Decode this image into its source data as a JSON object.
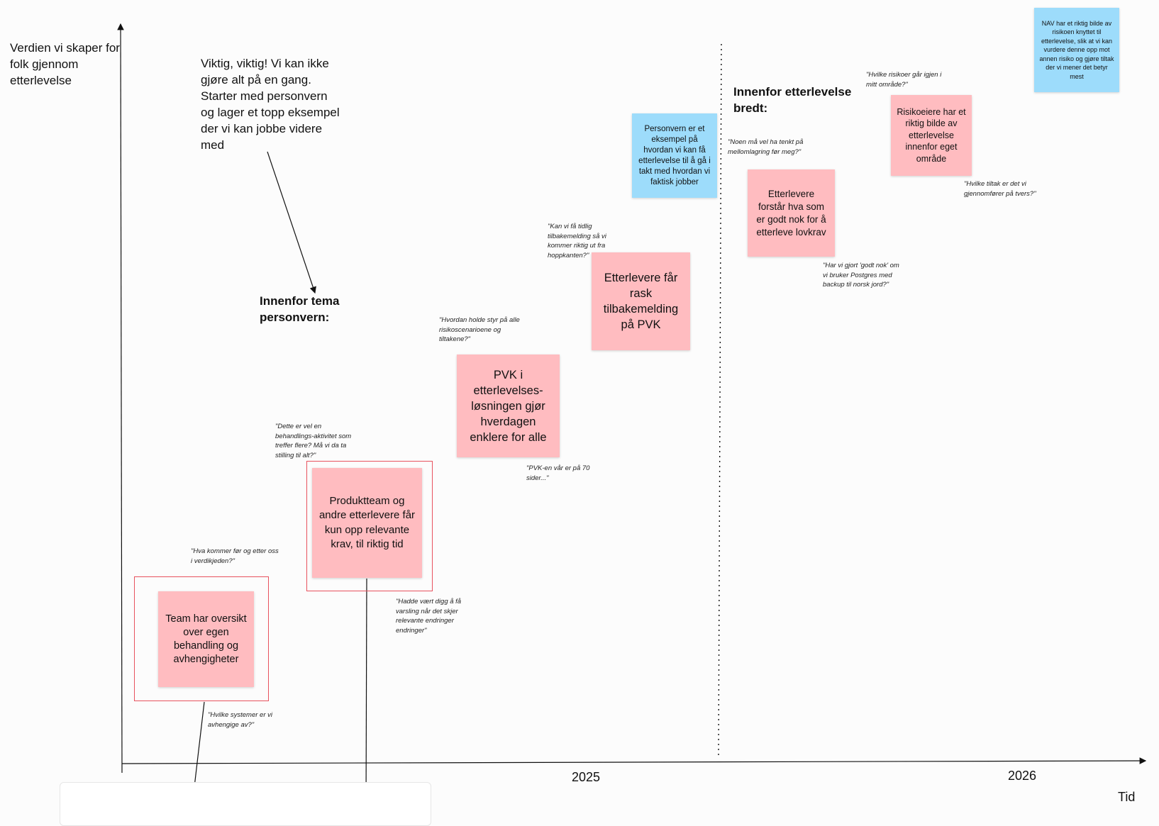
{
  "y_axis_label": "Verdien vi skaper for folk gjennom etterlevelse",
  "x_axis_label": "Tid",
  "years": [
    "2025",
    "2026"
  ],
  "intro_note": "Viktig, viktig! Vi kan ikke gjøre alt på en gang. Starter med personvern og lager et topp eksempel der vi kan jobbe videre med",
  "heading_personvern": "Innenfor tema personvern:",
  "heading_bredt": "Innenfor etterlevelse bredt:",
  "stickies": {
    "team": "Team har oversikt over egen behandling og avhengigheter",
    "produktteam": "Produktteam og andre etterlevere får kun opp relevante krav, til riktig tid",
    "pvk": "PVK i etterlevelses-løsningen gjør hverdagen enklere for alle",
    "tilbakemelding": "Etterlevere får rask tilbakemelding på PVK",
    "personvern_eksempel": "Personvern er et eksempel på hvordan vi kan få etterlevelse til å gå i takt med hvordan vi faktisk jobber",
    "lovkrav": "Etterlevere forstår hva som er godt nok for å etterleve lovkrav",
    "risikoeiere": "Risikoeiere har et riktig bilde av etterlevelse innenfor eget område",
    "nav_risiko": "NAV har et riktig bilde av risikoen knyttet til etterlevelse, slik at vi kan vurdere denne opp mot annen risiko og gjøre tiltak der vi mener det betyr mest"
  },
  "quotes": {
    "verdikjeden": "\"Hva kommer før og etter oss i verdikjeden?\"",
    "systemer": "\"Hvilke systemer er vi avhengige av?\"",
    "behandlingsaktivitet": "\"Dette er vel en behandlings-aktivitet som treffer flere? Må vi da ta stilling til alt?\"",
    "varsling": "\"Hadde vært digg å få varsling når det skjer relevante endringer endringer\"",
    "risikoscenarioene": "\"Hvordan holde styr på alle risikoscenarioene og tiltakene?\"",
    "pvk70": "\"PVK-en vår er på 70 sider...\"",
    "tidlig": "\"Kan vi få tidlig tilbakemelding så vi kommer riktig ut fra hoppkanten?\"",
    "mellomlagring": "\"Noen må vel ha tenkt på mellomlagring før meg?\"",
    "postgres": "\"Har vi gjort 'godt nok' om vi bruker Postgres med backup til norsk jord?\"",
    "risikoer_omrade": "\"Hvilke risikoer går igjen i mitt område?\"",
    "tiltak_tvers": "\"Hvilke tiltak er det vi gjennomfører på tvers?\""
  }
}
